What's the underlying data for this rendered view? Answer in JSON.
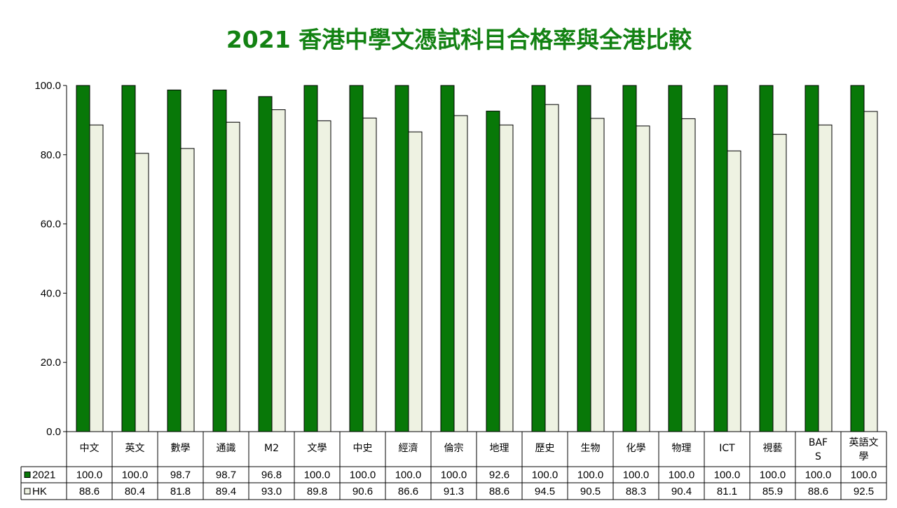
{
  "chart_data": {
    "type": "bar",
    "title": "2021 香港中學文憑試科目合格率與全港比較",
    "categories": [
      "中文",
      "英文",
      "數學",
      "通識",
      "M2",
      "文學",
      "中史",
      "經濟",
      "倫宗",
      "地理",
      "歷史",
      "生物",
      "化學",
      "物理",
      "ICT",
      "視藝",
      "BAFS",
      "英語文學"
    ],
    "series": [
      {
        "name": "2021",
        "color": "#087808",
        "values": [
          100.0,
          100.0,
          98.7,
          98.7,
          96.8,
          100.0,
          100.0,
          100.0,
          100.0,
          92.6,
          100.0,
          100.0,
          100.0,
          100.0,
          100.0,
          100.0,
          100.0,
          100.0
        ],
        "labels": [
          "100.0",
          "100.0",
          "98.7",
          "98.7",
          "96.8",
          "100.0",
          "100.0",
          "100.0",
          "100.0",
          "92.6",
          "100.0",
          "100.0",
          "100.0",
          "100.0",
          "100.0",
          "100.0",
          "100.0",
          "100.0"
        ]
      },
      {
        "name": "HK",
        "color": "#eef2e2",
        "values": [
          88.6,
          80.4,
          81.8,
          89.4,
          93.0,
          89.8,
          90.6,
          86.6,
          91.3,
          88.6,
          94.5,
          90.5,
          88.3,
          90.4,
          81.1,
          85.9,
          88.6,
          92.5
        ],
        "labels": [
          "88.6",
          "80.4",
          "81.8",
          "89.4",
          "93.0",
          "89.8",
          "90.6",
          "86.6",
          "91.3",
          "88.6",
          "94.5",
          "90.5",
          "88.3",
          "90.4",
          "81.1",
          "85.9",
          "88.6",
          "92.5"
        ]
      }
    ],
    "ylim": [
      0,
      100
    ],
    "yticks": [
      "0.0",
      "20.0",
      "40.0",
      "60.0",
      "80.0",
      "100.0"
    ],
    "xlabel": "",
    "ylabel": "",
    "grid": false,
    "legend": "data-table"
  }
}
